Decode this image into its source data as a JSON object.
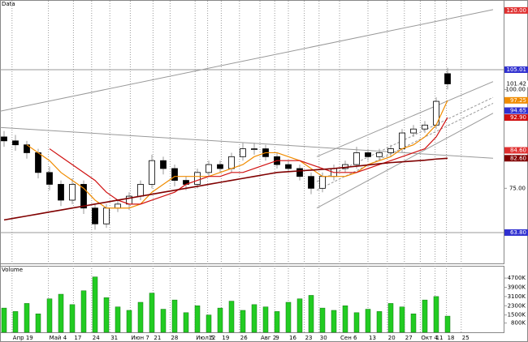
{
  "chart_data": [
    {
      "type": "candlestick",
      "title": "Data",
      "ylim": [
        56,
        121
      ],
      "yticks": [
        {
          "value": 75,
          "label": "75.00"
        },
        {
          "value": 100,
          "label": "100.00"
        }
      ],
      "xlim": [
        -0.36,
        44
      ],
      "xticks": [
        {
          "value": 0.7,
          "label": "Апр 19"
        },
        {
          "value": 3.9,
          "label": "Май 4"
        },
        {
          "value": 6.1,
          "label": "17"
        },
        {
          "value": 7.7,
          "label": "24"
        },
        {
          "value": 9.3,
          "label": "31"
        },
        {
          "value": 11.1,
          "label": "Июн 7"
        },
        {
          "value": 13.1,
          "label": "21"
        },
        {
          "value": 14.6,
          "label": "28"
        },
        {
          "value": 16.8,
          "label": "Июл 5"
        },
        {
          "value": 17.9,
          "label": "12"
        },
        {
          "value": 19.1,
          "label": "19"
        },
        {
          "value": 20.7,
          "label": "26"
        },
        {
          "value": 22.5,
          "label": "Авг 2"
        },
        {
          "value": 23.8,
          "label": "9"
        },
        {
          "value": 25,
          "label": "16"
        },
        {
          "value": 26.4,
          "label": "23"
        },
        {
          "value": 27.7,
          "label": "30"
        },
        {
          "value": 29.5,
          "label": "Сен 6"
        },
        {
          "value": 32,
          "label": "13"
        },
        {
          "value": 33.7,
          "label": "20"
        },
        {
          "value": 35.2,
          "label": "27"
        },
        {
          "value": 36.6,
          "label": "Окт 4"
        },
        {
          "value": 37.9,
          "label": "11"
        },
        {
          "value": 38.9,
          "label": "18"
        },
        {
          "value": 40.2,
          "label": "25"
        }
      ],
      "open": [
        88,
        87,
        86,
        84,
        79,
        76,
        72,
        76,
        70,
        66,
        70,
        71,
        73,
        76,
        82,
        80,
        77,
        76,
        79,
        81,
        80,
        83,
        85,
        85,
        83,
        81,
        80,
        78,
        75,
        78,
        80,
        81,
        84,
        83,
        84,
        85,
        89,
        90,
        91,
        104
      ],
      "high": [
        89.5,
        88.5,
        87,
        85,
        80.5,
        77,
        77.5,
        77,
        71,
        71,
        72,
        74,
        77,
        83.5,
        83,
        81,
        78,
        80,
        82,
        82,
        84,
        86.5,
        86.5,
        86,
        84,
        82,
        81,
        79,
        79,
        81,
        82,
        85.5,
        85,
        85,
        86,
        90,
        91,
        92,
        98,
        105.5
      ],
      "low": [
        85.5,
        84.5,
        82.5,
        77.5,
        74.5,
        70.5,
        71,
        68.5,
        64.5,
        65,
        69,
        69.5,
        72,
        75,
        78.5,
        75.5,
        74.5,
        75,
        78,
        79,
        79,
        82,
        83.5,
        82,
        80,
        79,
        77,
        73.5,
        74,
        77,
        79,
        80,
        82,
        82,
        83,
        84,
        88,
        89,
        90,
        100
      ],
      "close": [
        87,
        86,
        84,
        79,
        76,
        72,
        76,
        70,
        66,
        70,
        71,
        73,
        76,
        82,
        80,
        77,
        76,
        79,
        81,
        80,
        83,
        85,
        85,
        83,
        81,
        80,
        78,
        75,
        78,
        80,
        81,
        84,
        83,
        84,
        85,
        89,
        90,
        91,
        97,
        101.42
      ],
      "up_color": "#ffffff",
      "down_color": "#000000",
      "series": [
        {
          "color": "#f08c00",
          "values": [
            null,
            null,
            86,
            84,
            82,
            79,
            77,
            75,
            72,
            70,
            70,
            70,
            71,
            74,
            76,
            78,
            78,
            78,
            78,
            79,
            80,
            81,
            83,
            84,
            84,
            83,
            82,
            80,
            78,
            78,
            78,
            79,
            81,
            82,
            83,
            85,
            86,
            88,
            91,
            97.25
          ]
        },
        {
          "color": "#d01010",
          "values": [
            null,
            null,
            null,
            null,
            85,
            83,
            81,
            79,
            77,
            74,
            72,
            71,
            71,
            72,
            73,
            74,
            76,
            77,
            78,
            78,
            79,
            79,
            80,
            81,
            82,
            82,
            82,
            81,
            80,
            79,
            79,
            79,
            80,
            81,
            82,
            83,
            84,
            85,
            88,
            92.9
          ]
        },
        {
          "color": "#800000",
          "values": [
            67,
            67.5,
            68,
            68.5,
            69,
            69.5,
            70,
            70.5,
            71,
            71.5,
            72,
            72.5,
            73,
            73.5,
            74,
            74.5,
            75,
            75.5,
            76,
            76.5,
            77,
            77.5,
            78,
            78.5,
            79,
            79.2,
            79.4,
            79.6,
            79.8,
            80,
            80.3,
            80.6,
            80.9,
            81.2,
            81.5,
            81.7,
            81.9,
            82.1,
            82.4,
            82.6
          ]
        }
      ],
      "lines": [
        {
          "from": [
            -0.36,
            105.01
          ],
          "to": [
            44,
            105.01
          ],
          "color": "#3030d0"
        },
        {
          "from": [
            -0.36,
            63.8
          ],
          "to": [
            44,
            63.8
          ],
          "color": "#3030d0"
        },
        {
          "from": [
            -0.36,
            94.5
          ],
          "to": [
            43,
            120.2
          ],
          "color": "#e07070"
        },
        {
          "from": [
            -0.36,
            90.4
          ],
          "to": [
            43,
            82.6
          ],
          "color": "#e07070"
        },
        {
          "from": [
            27.5,
            83
          ],
          "to": [
            43,
            102
          ],
          "color": "#5050d0"
        },
        {
          "from": [
            27.5,
            76.7
          ],
          "to": [
            43,
            98
          ],
          "color": "#8080e0",
          "dashed": true
        },
        {
          "from": [
            27.5,
            74.5
          ],
          "to": [
            43,
            96.5
          ],
          "color": "#8080e0",
          "dashed": true
        },
        {
          "from": [
            27.5,
            70
          ],
          "to": [
            43,
            94
          ],
          "color": "#5050d0"
        }
      ],
      "price_labels": [
        {
          "value": 120,
          "label": "120.00",
          "color": "#e03030"
        },
        {
          "value": 105.01,
          "label": "105.01",
          "color": "#3030d0"
        },
        {
          "value": 101.42,
          "label": "101.42",
          "color": "#000000"
        },
        {
          "value": 97.25,
          "label": "97.25",
          "color": "#f08c00"
        },
        {
          "value": 94.65,
          "label": "94.65",
          "color": "#3030d0"
        },
        {
          "value": 92.9,
          "label": "92.90",
          "color": "#d01010"
        },
        {
          "value": 84.6,
          "label": "84.60",
          "color": "#e03030"
        },
        {
          "value": 82.6,
          "label": "82.60",
          "color": "#800000"
        },
        {
          "value": 63.8,
          "label": "63.80",
          "color": "#3030d0"
        }
      ]
    },
    {
      "type": "bar",
      "title": "Volume",
      "color": "#22cc22",
      "ylim": [
        0,
        5200
      ],
      "yticks": [
        {
          "value": 800,
          "label": "800K"
        },
        {
          "value": 1500,
          "label": "1500K"
        },
        {
          "value": 2300,
          "label": "2300K"
        },
        {
          "value": 3100,
          "label": "3100K"
        },
        {
          "value": 3900,
          "label": "3900K"
        },
        {
          "value": 4700,
          "label": "4700K"
        }
      ],
      "values": [
        2100,
        1800,
        2500,
        1600,
        2900,
        3300,
        2400,
        3600,
        4800,
        3000,
        2200,
        1900,
        2600,
        3400,
        2000,
        2800,
        1700,
        2300,
        1500,
        2100,
        2700,
        1900,
        2400,
        2200,
        1800,
        2600,
        2900,
        3200,
        2100,
        1900,
        2300,
        1700,
        2000,
        1800,
        2500,
        2200,
        1600,
        2800,
        3100,
        1400
      ]
    }
  ]
}
